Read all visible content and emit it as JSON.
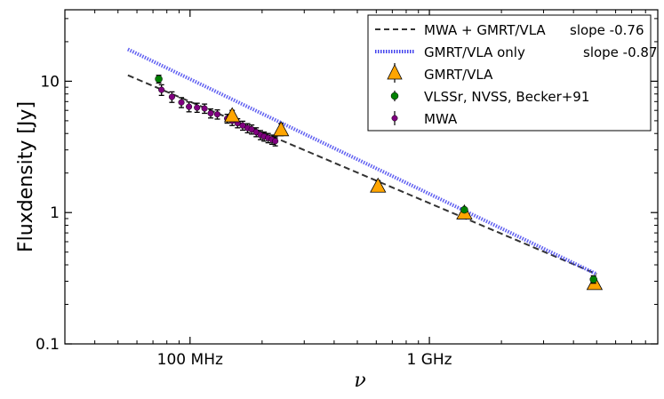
{
  "chart_data": {
    "type": "scatter",
    "title": "",
    "xlabel": "ν",
    "ylabel": "Fluxdensity [Jy]",
    "xscale": "log",
    "yscale": "log",
    "xlim_mhz": [
      30,
      9000
    ],
    "ylim_jy": [
      0.1,
      35
    ],
    "x_ticks": [
      {
        "value_mhz": 100,
        "label": "100 MHz"
      },
      {
        "value_mhz": 1000,
        "label": "1 GHz"
      }
    ],
    "y_ticks": [
      {
        "value_jy": 0.1,
        "label": "0.1"
      },
      {
        "value_jy": 1,
        "label": "1"
      },
      {
        "value_jy": 10,
        "label": "10"
      }
    ],
    "legend_position": "top-right",
    "fit_lines": [
      {
        "name": "MWA + GMRT/VLA",
        "slope_label": "slope -0.76",
        "slope": -0.76,
        "style": "dashed",
        "color": "#333333",
        "points": [
          {
            "x": 55,
            "y": 11.1
          },
          {
            "x": 5000,
            "y": 0.34
          }
        ]
      },
      {
        "name": "GMRT/VLA only",
        "slope_label": "slope -0.87",
        "slope": -0.87,
        "style": "dotted",
        "color": "#4444ee",
        "points": [
          {
            "x": 55,
            "y": 17.5
          },
          {
            "x": 5000,
            "y": 0.34
          }
        ]
      }
    ],
    "series": [
      {
        "name": "GMRT/VLA",
        "marker": "triangle",
        "color": "#ffa500",
        "points": [
          {
            "x": 150,
            "y": 5.5,
            "yerr": 0.5
          },
          {
            "x": 240,
            "y": 4.3,
            "yerr": 0.45
          },
          {
            "x": 610,
            "y": 1.6,
            "yerr": 0.15
          },
          {
            "x": 1400,
            "y": 1.0,
            "yerr": 0.05
          },
          {
            "x": 4900,
            "y": 0.29,
            "yerr": 0.02
          }
        ]
      },
      {
        "name": "VLSSr, NVSS, Becker+91",
        "marker": "circle",
        "color": "#008000",
        "points": [
          {
            "x": 74,
            "y": 10.4,
            "yerr": 0.7
          },
          {
            "x": 1400,
            "y": 1.05,
            "yerr": 0.04
          },
          {
            "x": 4850,
            "y": 0.31,
            "yerr": 0.02
          }
        ]
      },
      {
        "name": "MWA",
        "marker": "circle",
        "color": "#800080",
        "points": [
          {
            "x": 76,
            "y": 8.6,
            "yerr": 0.8
          },
          {
            "x": 84,
            "y": 7.6,
            "yerr": 0.7
          },
          {
            "x": 92,
            "y": 6.9,
            "yerr": 0.6
          },
          {
            "x": 99,
            "y": 6.4,
            "yerr": 0.55
          },
          {
            "x": 107,
            "y": 6.3,
            "yerr": 0.5
          },
          {
            "x": 115,
            "y": 6.2,
            "yerr": 0.5
          },
          {
            "x": 122,
            "y": 5.7,
            "yerr": 0.45
          },
          {
            "x": 130,
            "y": 5.6,
            "yerr": 0.45
          },
          {
            "x": 143,
            "y": 5.2,
            "yerr": 0.4
          },
          {
            "x": 150,
            "y": 5.0,
            "yerr": 0.4
          },
          {
            "x": 158,
            "y": 4.8,
            "yerr": 0.38
          },
          {
            "x": 166,
            "y": 4.6,
            "yerr": 0.36
          },
          {
            "x": 174,
            "y": 4.4,
            "yerr": 0.35
          },
          {
            "x": 181,
            "y": 4.3,
            "yerr": 0.34
          },
          {
            "x": 189,
            "y": 4.1,
            "yerr": 0.32
          },
          {
            "x": 197,
            "y": 3.9,
            "yerr": 0.31
          },
          {
            "x": 204,
            "y": 3.8,
            "yerr": 0.3
          },
          {
            "x": 212,
            "y": 3.7,
            "yerr": 0.3
          },
          {
            "x": 220,
            "y": 3.6,
            "yerr": 0.29
          },
          {
            "x": 227,
            "y": 3.5,
            "yerr": 0.28
          }
        ]
      }
    ]
  }
}
